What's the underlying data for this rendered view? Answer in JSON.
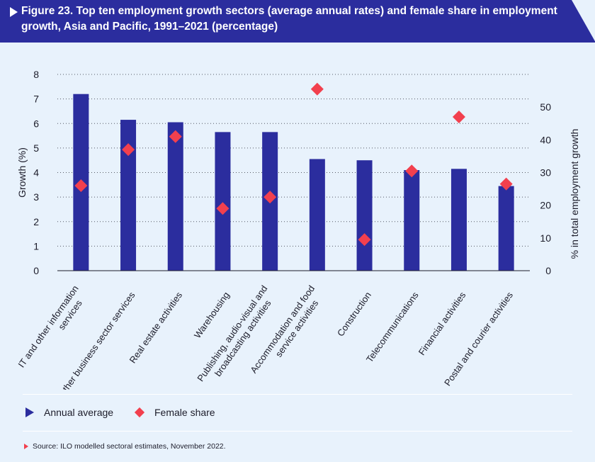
{
  "header": {
    "title": "Figure 23. Top ten employment growth sectors (average annual rates) and female share in employment growth, Asia and Pacific, 1991–2021 (percentage)"
  },
  "chart_data": {
    "type": "bar",
    "title": "Figure 23. Top ten employment growth sectors (average annual rates) and female share in employment growth, Asia and Pacific, 1991–2021 (percentage)",
    "categories": [
      "IT and other information services",
      "Other business sector services",
      "Real estate activities",
      "Warehousing",
      "Publishing, audio-visual and broadcasting activities",
      "Accommodation and food service activities",
      "Construction",
      "Telecommunications",
      "Financial activities",
      "Postal and courier activities"
    ],
    "category_lines": [
      [
        "IT and other information",
        "services"
      ],
      [
        "Other business sector services"
      ],
      [
        "Real estate activities"
      ],
      [
        "Warehousing"
      ],
      [
        "Publishing, audio-visual and",
        "broadcasting activities"
      ],
      [
        "Accommodation and food",
        "service activities"
      ],
      [
        "Construction"
      ],
      [
        "Telecommunications"
      ],
      [
        "Financial activities"
      ],
      [
        "Postal and courier activities"
      ]
    ],
    "series": [
      {
        "name": "Annual average",
        "kind": "bar",
        "axis": "left",
        "color": "#2b2d9e",
        "values": [
          7.2,
          6.15,
          6.05,
          5.65,
          5.65,
          4.55,
          4.5,
          4.1,
          4.15,
          3.45
        ]
      },
      {
        "name": "Female share",
        "kind": "marker",
        "axis": "right",
        "color": "#f2404e",
        "values": [
          26,
          37,
          41,
          19,
          22.5,
          55.5,
          9.5,
          30.5,
          47,
          26.5
        ]
      }
    ],
    "ylabel": "Growth (%)",
    "ylim": [
      0,
      8
    ],
    "yticks": [
      0,
      1,
      2,
      3,
      4,
      5,
      6,
      7,
      8
    ],
    "y2label": "% in total employment growth",
    "y2lim": [
      0,
      60
    ],
    "y2ticks": [
      0,
      10,
      20,
      30,
      40,
      50
    ],
    "grid": "dotted-horizontal",
    "legend": "bottom-left"
  },
  "legend": {
    "bar_label": "Annual average",
    "marker_label": "Female share"
  },
  "source": "Source: ILO modelled sectoral estimates, November 2022.",
  "colors": {
    "header_bg": "#2b2d9e",
    "bar": "#2b2d9e",
    "marker": "#f2404e",
    "page_bg": "#e8f2fc"
  }
}
